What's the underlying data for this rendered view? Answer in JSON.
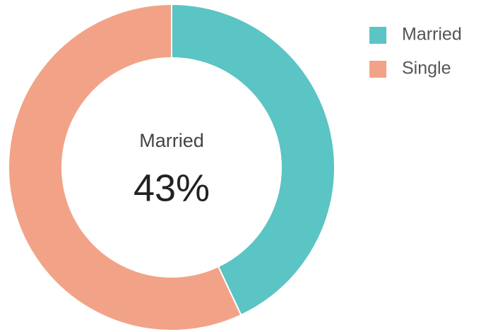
{
  "chart_data": {
    "type": "donut",
    "categories": [
      "Married",
      "Single"
    ],
    "values": [
      43,
      57
    ],
    "value_labels": [
      "43%",
      null
    ],
    "colors": [
      "#5bc4c4",
      "#f2a387"
    ],
    "center_category": 0,
    "legend": "top-right"
  }
}
